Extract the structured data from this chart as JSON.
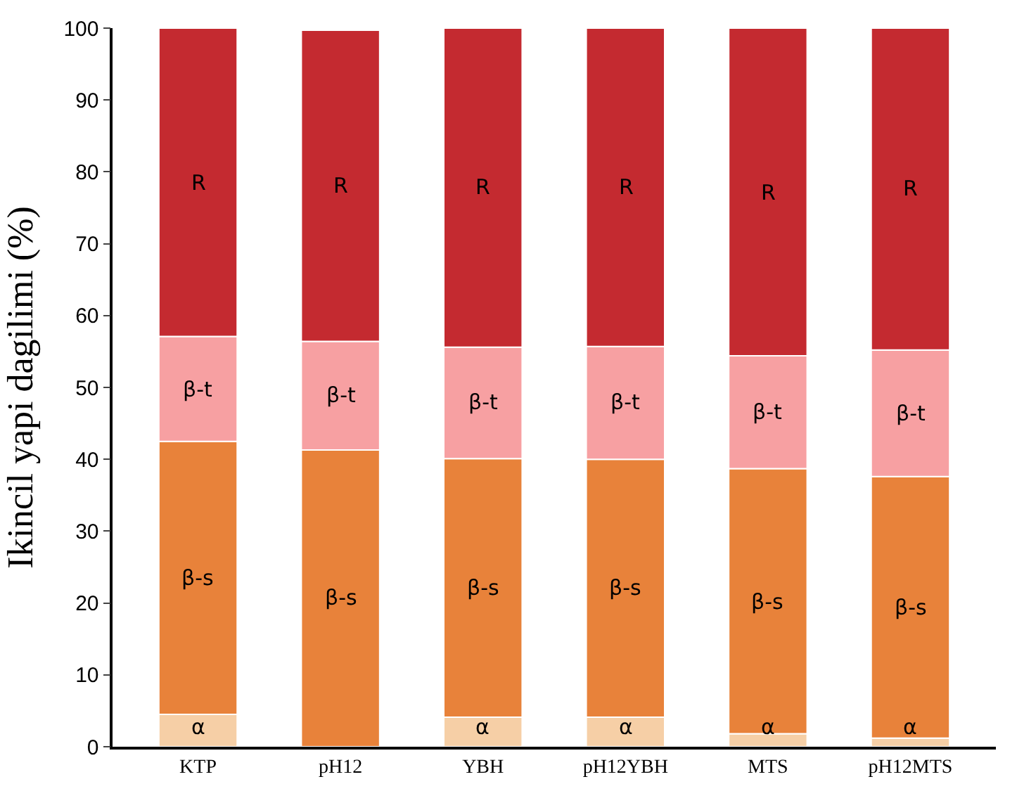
{
  "chart_data": {
    "type": "bar",
    "stacked": true,
    "ylabel": "Ikincil yapi dagilimi (%)",
    "categories": [
      "KTP",
      "pH12",
      "YBH",
      "pH12YBH",
      "MTS",
      "pH12MTS"
    ],
    "series": [
      {
        "name": "α",
        "color": "#f6cfa6",
        "values": [
          4.5,
          0,
          4.1,
          4.1,
          1.8,
          1.2
        ]
      },
      {
        "name": "β-s",
        "color": "#e8823a",
        "values": [
          38.0,
          41.3,
          36.0,
          35.9,
          36.9,
          36.4
        ]
      },
      {
        "name": "β-t",
        "color": "#f7a0a2",
        "values": [
          14.6,
          15.1,
          15.5,
          15.7,
          15.7,
          17.6
        ]
      },
      {
        "name": "R",
        "color": "#c42a30",
        "values": [
          42.9,
          43.3,
          44.4,
          44.3,
          45.6,
          44.8
        ]
      }
    ],
    "ylim": [
      0,
      100
    ],
    "yticks": [
      0,
      10,
      20,
      30,
      40,
      50,
      60,
      70,
      80,
      90,
      100
    ],
    "legend": false
  }
}
